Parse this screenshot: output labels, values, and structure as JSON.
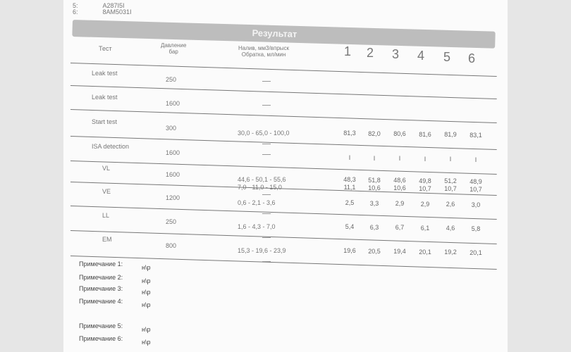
{
  "header_lines": [
    {
      "index": "5:",
      "code": "A287I5I"
    },
    {
      "index": "6:",
      "code": "8AM5031I"
    }
  ],
  "title": "Результат",
  "columns": {
    "test": "Тест",
    "pressure": "Давление\nбар",
    "nominal": "Налив, мм3/впрыск\nОбратка, мл/мин",
    "injectors": [
      "1",
      "2",
      "3",
      "4",
      "5",
      "6"
    ]
  },
  "rows": [
    {
      "test": "Leak test",
      "pressure": "250",
      "nominal": [
        "—"
      ],
      "values": []
    },
    {
      "test": "Leak test",
      "pressure": "1600",
      "nominal": [
        "—"
      ],
      "values": []
    },
    {
      "test": "Start test",
      "pressure": "300",
      "nominal": [
        "30,0 - 65,0 - 100,0"
      ],
      "values": [
        [
          "81,3",
          "82,0",
          "80,6",
          "81,6",
          "81,9",
          "83,1"
        ]
      ]
    },
    {
      "test": "ISA detection",
      "pressure": "1600",
      "nominal": [
        "—"
      ],
      "values": [
        [
          "I",
          "I",
          "I",
          "I",
          "I",
          "I"
        ]
      ]
    },
    {
      "test": "VL",
      "pressure": "1600",
      "nominal": [
        "44,6 - 50,1 - 55,6",
        "7,0 - 11,0 - 15,0"
      ],
      "values": [
        [
          "48,3",
          "51,8",
          "48,6",
          "49,8",
          "51,2",
          "48,9"
        ],
        [
          "11,1",
          "10,6",
          "10,6",
          "10,7",
          "10,7",
          "10,7"
        ]
      ]
    },
    {
      "test": "VE",
      "pressure": "1200",
      "nominal": [
        "0,6 - 2,1 - 3,6"
      ],
      "values": [
        [
          "2,5",
          "3,3",
          "2,9",
          "2,9",
          "2,6",
          "3,0"
        ]
      ]
    },
    {
      "test": "LL",
      "pressure": "250",
      "nominal": [
        "1,6 - 4,3 - 7,0"
      ],
      "values": [
        [
          "5,4",
          "6,3",
          "6,7",
          "6,1",
          "4,6",
          "5,8"
        ]
      ]
    },
    {
      "test": "EM",
      "pressure": "800",
      "nominal": [
        "15,3 - 19,6 - 23,9"
      ],
      "values": [
        [
          "19,6",
          "20,5",
          "19,4",
          "20,1",
          "19,2",
          "20,1"
        ]
      ]
    }
  ],
  "notes": [
    {
      "label": "Примечание 1:",
      "value": "н\\р"
    },
    {
      "label": "Примечание 2:",
      "value": "н\\р"
    },
    {
      "label": "Примечание 3:",
      "value": "н\\р"
    },
    {
      "label": "Примечание 4:",
      "value": "н\\р"
    },
    {
      "label": "Примечание 5:",
      "value": "н\\р"
    },
    {
      "label": "Примечание 6:",
      "value": "н\\р"
    }
  ]
}
